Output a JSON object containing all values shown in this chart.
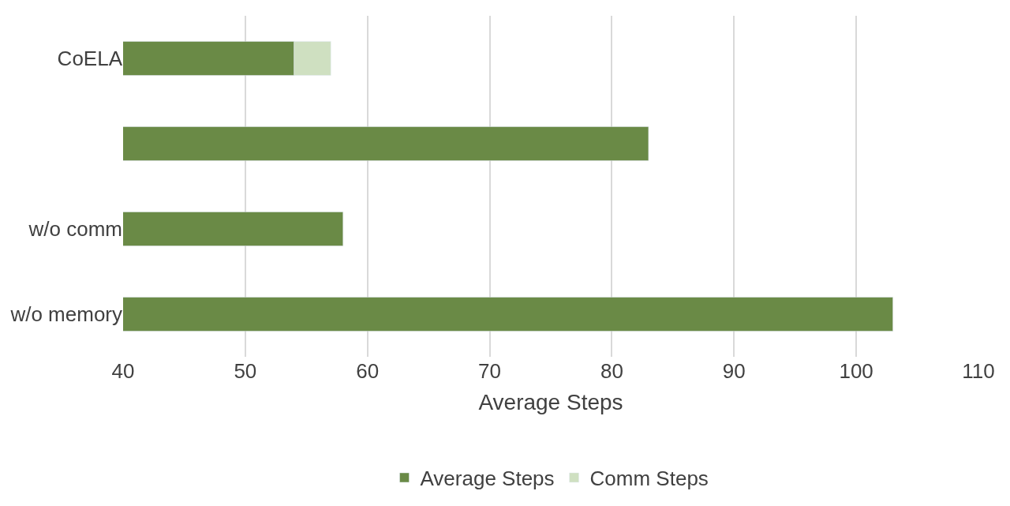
{
  "chart_data": {
    "type": "bar",
    "orientation": "horizontal",
    "categories": [
      "CoELA",
      null,
      "w/o comm",
      "w/o memory"
    ],
    "series": [
      {
        "name": "Average Steps",
        "color": "#6a8a46",
        "values": [
          54,
          83,
          58,
          103
        ]
      },
      {
        "name": "Comm Steps",
        "color": "#cfe0c1",
        "values": [
          3,
          null,
          null,
          null
        ],
        "base": [
          54,
          null,
          null,
          null
        ]
      }
    ],
    "xlabel": "Average Steps",
    "xlim": [
      40,
      110
    ],
    "xticks": [
      40,
      50,
      60,
      70,
      80,
      90,
      100,
      110
    ],
    "grid": "x",
    "legend": "bottom"
  }
}
